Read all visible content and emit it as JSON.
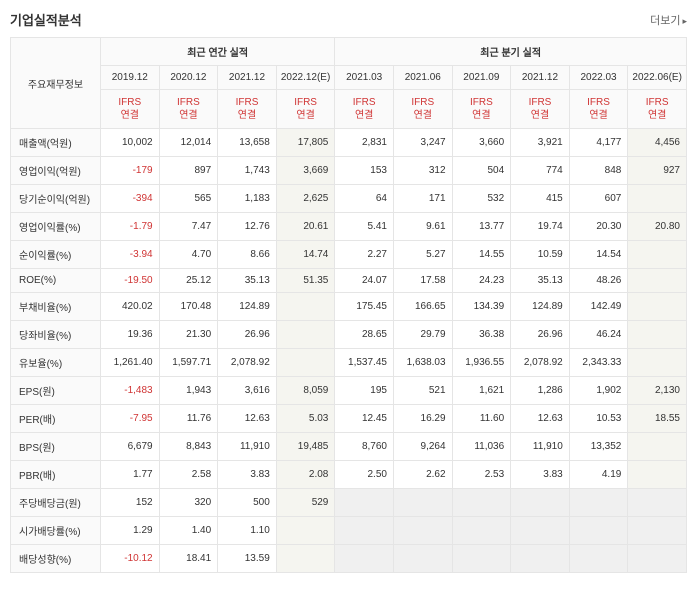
{
  "title": "기업실적분석",
  "more_label": "더보기",
  "section_annual": "최근 연간 실적",
  "section_quarter": "최근 분기 실적",
  "row_header_label": "주요재무정보",
  "ifrs_label": "IFRS\n연결",
  "periods_annual": [
    "2019.12",
    "2020.12",
    "2021.12",
    "2022.12(E)"
  ],
  "periods_quarter": [
    "2021.03",
    "2021.06",
    "2021.09",
    "2021.12",
    "2022.03",
    "2022.06(E)"
  ],
  "rows": [
    {
      "label": "매출액(억원)",
      "annual": [
        "10,002",
        "12,014",
        "13,658",
        "17,805"
      ],
      "quarter": [
        "2,831",
        "3,247",
        "3,660",
        "3,921",
        "4,177",
        "4,456"
      ]
    },
    {
      "label": "영업이익(억원)",
      "annual": [
        "-179",
        "897",
        "1,743",
        "3,669"
      ],
      "quarter": [
        "153",
        "312",
        "504",
        "774",
        "848",
        "927"
      ],
      "neg_a": [
        0
      ]
    },
    {
      "label": "당기순이익(억원)",
      "annual": [
        "-394",
        "565",
        "1,183",
        "2,625"
      ],
      "quarter": [
        "64",
        "171",
        "532",
        "415",
        "607",
        ""
      ],
      "neg_a": [
        0
      ]
    },
    {
      "label": "영업이익률(%)",
      "annual": [
        "-1.79",
        "7.47",
        "12.76",
        "20.61"
      ],
      "quarter": [
        "5.41",
        "9.61",
        "13.77",
        "19.74",
        "20.30",
        "20.80"
      ],
      "neg_a": [
        0
      ]
    },
    {
      "label": "순이익률(%)",
      "annual": [
        "-3.94",
        "4.70",
        "8.66",
        "14.74"
      ],
      "quarter": [
        "2.27",
        "5.27",
        "14.55",
        "10.59",
        "14.54",
        ""
      ],
      "neg_a": [
        0
      ]
    },
    {
      "label": "ROE(%)",
      "annual": [
        "-19.50",
        "25.12",
        "35.13",
        "51.35"
      ],
      "quarter": [
        "24.07",
        "17.58",
        "24.23",
        "35.13",
        "48.26",
        ""
      ],
      "neg_a": [
        0
      ]
    },
    {
      "label": "부채비율(%)",
      "annual": [
        "420.02",
        "170.48",
        "124.89",
        ""
      ],
      "quarter": [
        "175.45",
        "166.65",
        "134.39",
        "124.89",
        "142.49",
        ""
      ]
    },
    {
      "label": "당좌비율(%)",
      "annual": [
        "19.36",
        "21.30",
        "26.96",
        ""
      ],
      "quarter": [
        "28.65",
        "29.79",
        "36.38",
        "26.96",
        "46.24",
        ""
      ]
    },
    {
      "label": "유보율(%)",
      "annual": [
        "1,261.40",
        "1,597.71",
        "2,078.92",
        ""
      ],
      "quarter": [
        "1,537.45",
        "1,638.03",
        "1,936.55",
        "2,078.92",
        "2,343.33",
        ""
      ]
    },
    {
      "label": "EPS(원)",
      "annual": [
        "-1,483",
        "1,943",
        "3,616",
        "8,059"
      ],
      "quarter": [
        "195",
        "521",
        "1,621",
        "1,286",
        "1,902",
        "2,130"
      ],
      "neg_a": [
        0
      ]
    },
    {
      "label": "PER(배)",
      "annual": [
        "-7.95",
        "11.76",
        "12.63",
        "5.03"
      ],
      "quarter": [
        "12.45",
        "16.29",
        "11.60",
        "12.63",
        "10.53",
        "18.55"
      ],
      "neg_a": [
        0
      ]
    },
    {
      "label": "BPS(원)",
      "annual": [
        "6,679",
        "8,843",
        "11,910",
        "19,485"
      ],
      "quarter": [
        "8,760",
        "9,264",
        "11,036",
        "11,910",
        "13,352",
        ""
      ]
    },
    {
      "label": "PBR(배)",
      "annual": [
        "1.77",
        "2.58",
        "3.83",
        "2.08"
      ],
      "quarter": [
        "2.50",
        "2.62",
        "2.53",
        "3.83",
        "4.19",
        ""
      ]
    },
    {
      "label": "주당배당금(원)",
      "annual": [
        "152",
        "320",
        "500",
        "529"
      ],
      "quarter": [
        "",
        "",
        "",
        "",
        "",
        ""
      ],
      "grey_q": true
    },
    {
      "label": "시가배당률(%)",
      "annual": [
        "1.29",
        "1.40",
        "1.10",
        ""
      ],
      "quarter": [
        "",
        "",
        "",
        "",
        "",
        ""
      ],
      "grey_q": true
    },
    {
      "label": "배당성향(%)",
      "annual": [
        "-10.12",
        "18.41",
        "13.59",
        ""
      ],
      "quarter": [
        "",
        "",
        "",
        "",
        "",
        ""
      ],
      "neg_a": [
        0
      ],
      "grey_q": true
    }
  ],
  "colors": {
    "neg": "#d03434",
    "est_bg": "#f5f5f0",
    "grey_bg": "#f0f0f0"
  }
}
